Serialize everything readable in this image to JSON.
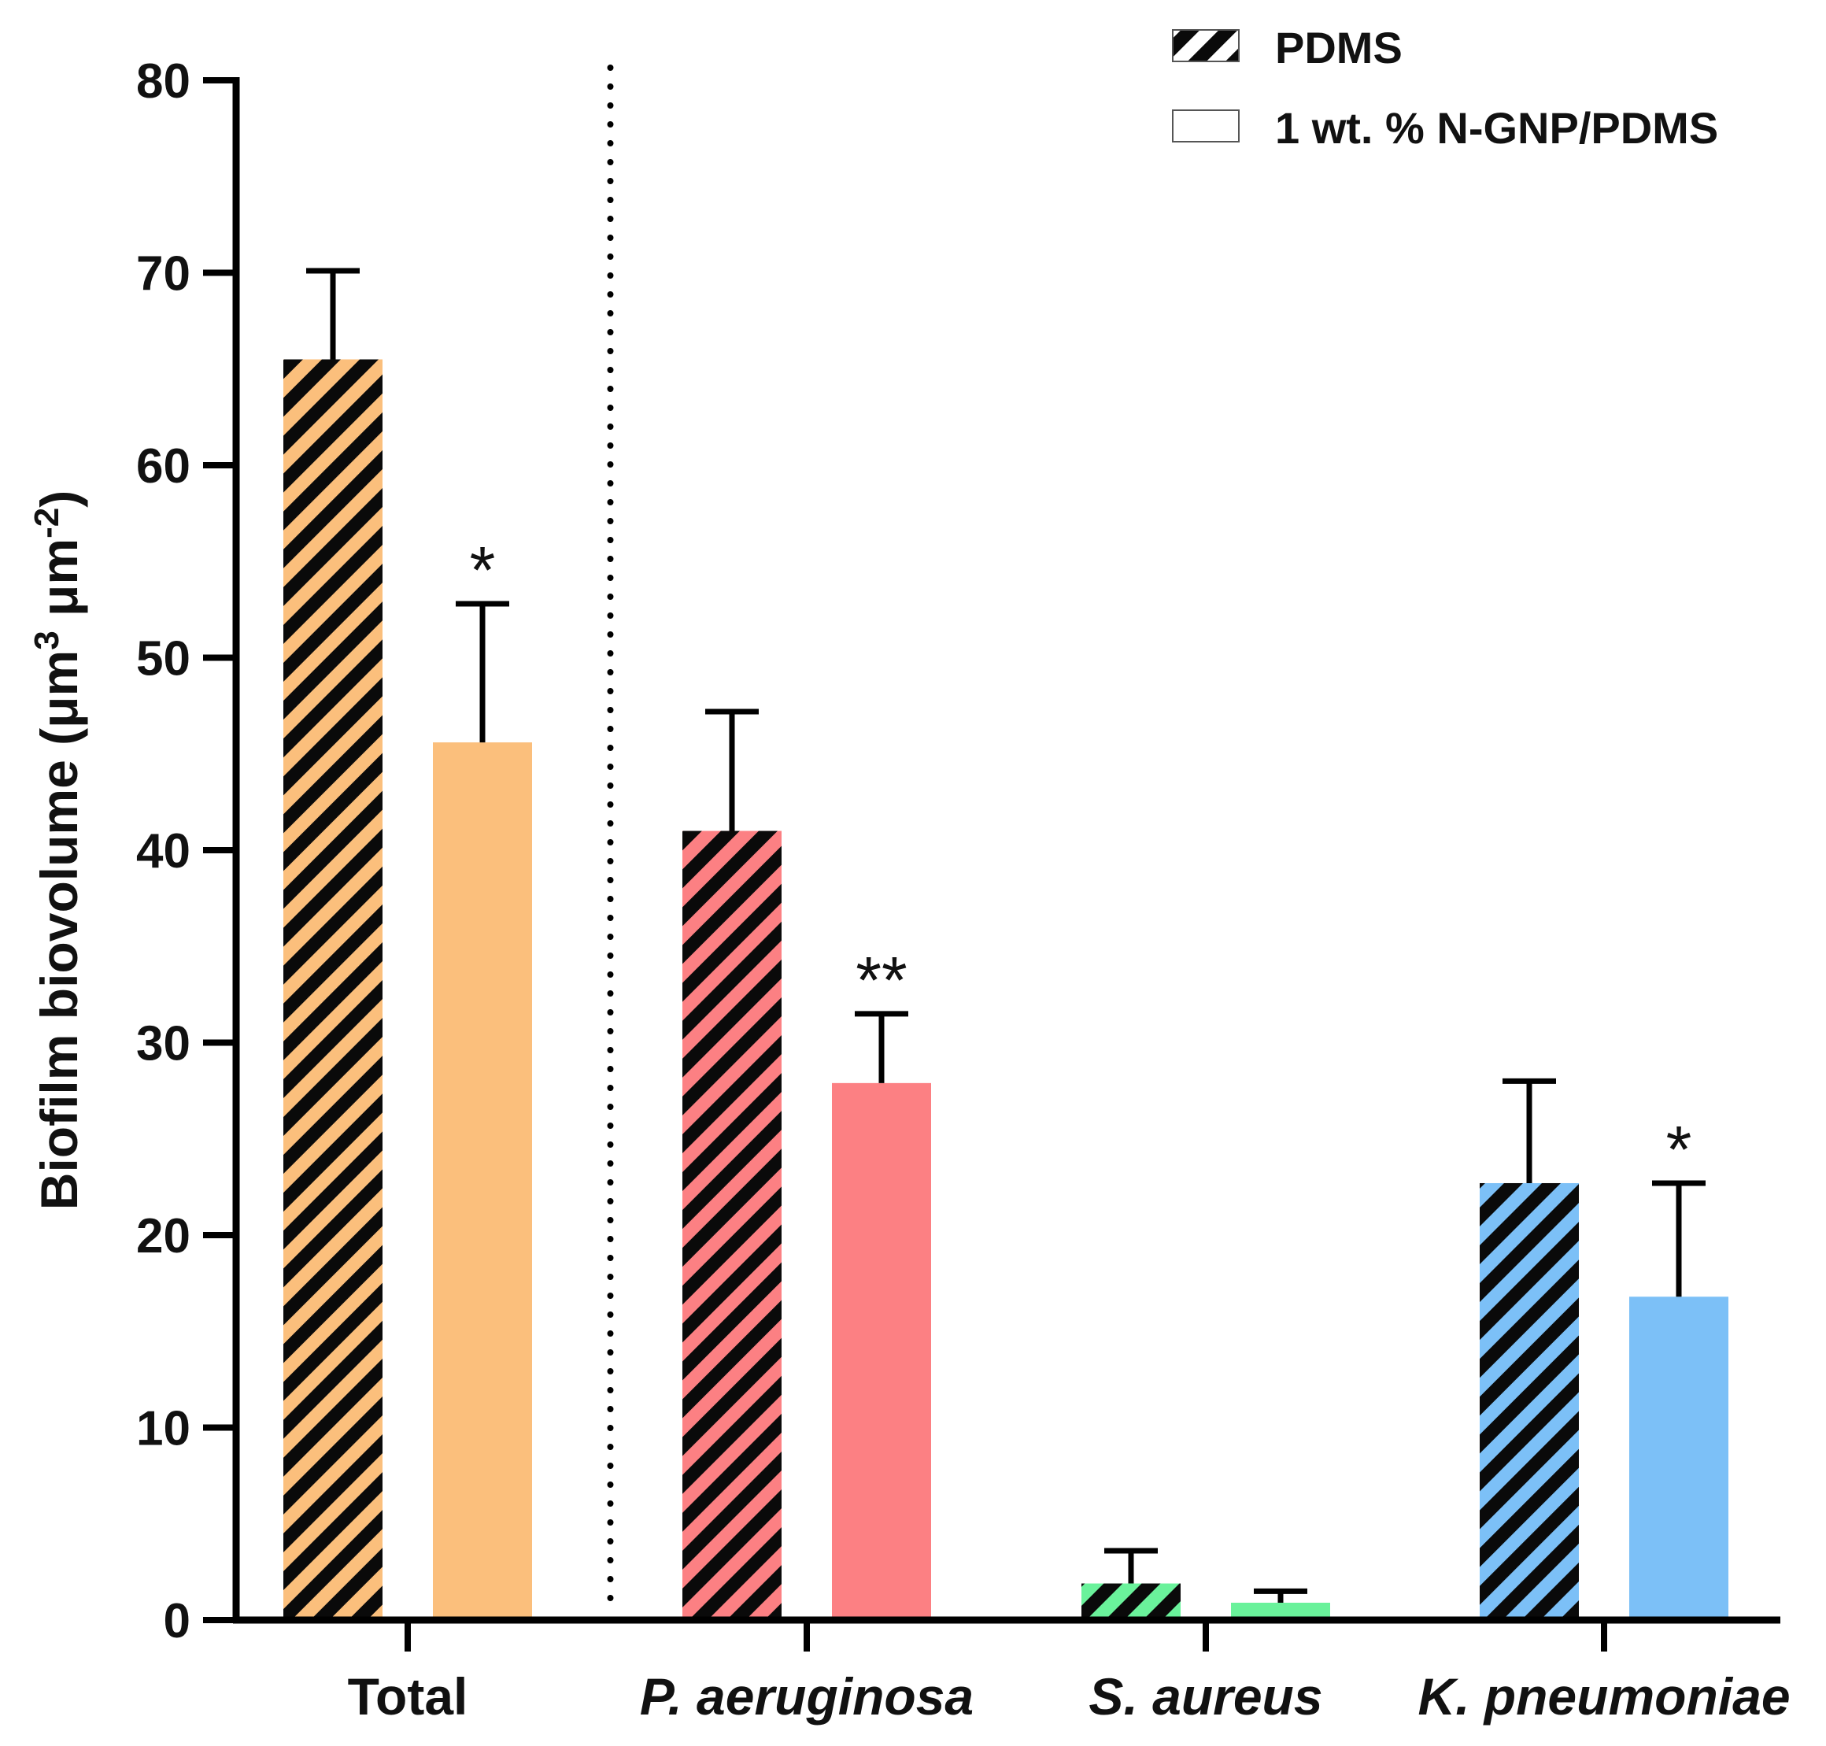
{
  "chart_data": {
    "type": "bar",
    "categories": [
      "Total",
      "P. aeruginosa",
      "S. aureus",
      "K. pneumoniae"
    ],
    "category_italic": [
      false,
      true,
      true,
      true
    ],
    "series": [
      {
        "name": "PDMS",
        "pattern": "hatched",
        "values": [
          65.5,
          41.0,
          1.9,
          22.7
        ],
        "errors": [
          4.6,
          6.2,
          1.7,
          5.3
        ],
        "significance": [
          "",
          "",
          "",
          ""
        ]
      },
      {
        "name": "1 wt. % N-GNP/PDMS",
        "pattern": "solid",
        "values": [
          45.6,
          27.9,
          0.9,
          16.8
        ],
        "errors": [
          7.2,
          3.6,
          0.6,
          5.9
        ],
        "significance": [
          "*",
          "**",
          "",
          "*"
        ]
      }
    ],
    "category_colors": [
      "#fbbf7c",
      "#fc8083",
      "#6af29b",
      "#7cc0f7"
    ],
    "ylabel": "Biofilm biovolume (μm³ μm⁻²)",
    "ylabel_parts": [
      "Biofilm biovolume (",
      "μm",
      "3",
      " ",
      "μm",
      "-2",
      ")"
    ],
    "ylim": [
      0,
      80
    ],
    "yticks": [
      0,
      10,
      20,
      30,
      40,
      50,
      60,
      70,
      80
    ],
    "divider_after_category": 0,
    "legend_position": "top-right",
    "grid": false
  }
}
